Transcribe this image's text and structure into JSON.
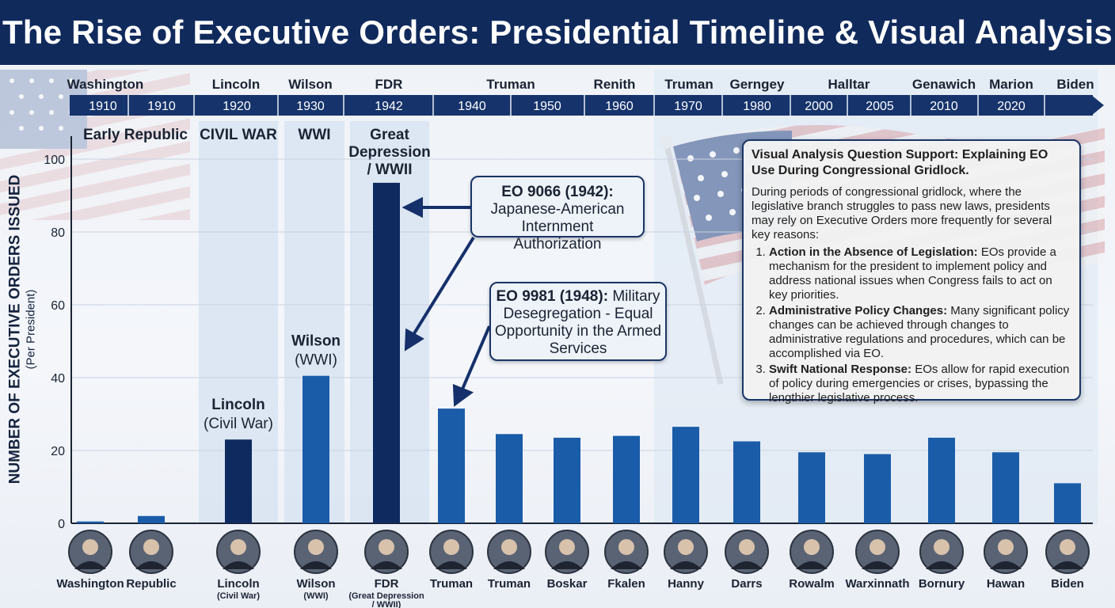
{
  "title": "The Rise of Executive Orders: Presidential Timeline & Visual Analysis",
  "colors": {
    "header": "#102a5c",
    "bar_dark": "#0f2a5f",
    "bar_mid": "#1a5ca8",
    "era_band": "#d7e3f1",
    "axis": "#1b2333"
  },
  "timeline": {
    "names": [
      "Washington",
      "Lincoln",
      "Wilson",
      "FDR",
      "Truman",
      "Renith",
      "Truman",
      "Gerngey",
      "Halltar",
      "Genawich",
      "Marion",
      "Biden"
    ],
    "years": [
      "1910",
      "1910",
      "1920",
      "1930",
      "1942",
      "1940",
      "1950",
      "1960",
      "1970",
      "1980",
      "2000",
      "2005",
      "2010",
      "2020"
    ]
  },
  "eras": [
    "Early Republic",
    "CIVIL WAR",
    "WWI",
    "Great Depression / WWII"
  ],
  "bar_labels": {
    "lincoln_name": "Lincoln",
    "lincoln_sub": "(Civil War)",
    "wilson_name": "Wilson",
    "wilson_sub": "(WWI)"
  },
  "callouts": {
    "eo9066_title": "EO 9066 (1942):",
    "eo9066_text": "Japanese-American Internment Authorization",
    "eo9981_title": "EO 9981 (1948):",
    "eo9981_text": "Military Desegregation - Equal Opportunity in the Armed Services"
  },
  "analysis": {
    "title": "Visual Analysis Question Support: Explaining EO Use During Congressional Gridlock.",
    "intro": "During periods of congressional gridlock, where the legislative branch struggles to pass new laws, presidents may rely on Executive Orders more frequently for several key reasons:",
    "items": [
      {
        "head": "Action in the Absence of Legislation:",
        "text": "EOs provide a mechanism for the president to implement policy and address national issues when Congress fails to act on key priorities."
      },
      {
        "head": "Administrative Policy Changes:",
        "text": "Many significant policy changes can be achieved through changes to administrative regulations and procedures, which can be accomplished via EO."
      },
      {
        "head": "Swift National Response:",
        "text": "EOs allow for rapid execution of policy during emergencies or crises, bypassing the lengthier legislative process."
      }
    ]
  },
  "chart_data": {
    "type": "bar",
    "ylabel": "NUMBER OF EXECUTIVE ORDERS ISSUED",
    "ylabel_sub": "(Per President)",
    "ylim": [
      0,
      100
    ],
    "yticks": [
      0,
      20,
      40,
      60,
      80,
      100
    ],
    "grid": true,
    "categories": [
      "Washington",
      "Republic",
      "Lincoln",
      "Wilson",
      "FDR",
      "Truman",
      "Truman",
      "Boskar",
      "Fkalen",
      "Hanny",
      "Darrs",
      "Rowalm",
      "Warxinnath",
      "Bornury",
      "Hawan",
      "Biden"
    ],
    "category_subs": [
      "",
      "",
      "(Civil War)",
      "(WWI)",
      "(Great Depression / WWII)",
      "",
      "",
      "",
      "",
      "",
      "",
      "",
      "",
      "",
      "",
      ""
    ],
    "values": [
      0.5,
      2,
      23,
      40.5,
      93.5,
      31.5,
      24.5,
      23.5,
      24,
      26.5,
      22.5,
      19.5,
      19,
      23.5,
      19.5,
      11
    ],
    "highlight": [
      "Lincoln",
      "FDR"
    ]
  }
}
